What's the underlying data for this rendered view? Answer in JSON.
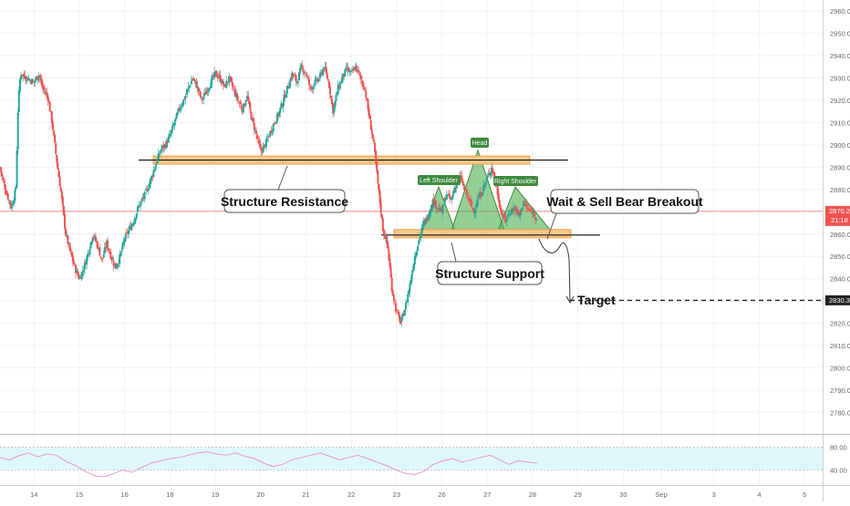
{
  "chart_data": {
    "type": "candlestick",
    "title": "",
    "price_axis": {
      "range": [
        2772,
        2965
      ],
      "ticks": [
        2960,
        2950,
        2940,
        2930,
        2920,
        2910,
        2900,
        2890,
        2880,
        2870,
        2860,
        2850,
        2840,
        2830,
        2820,
        2810,
        2800,
        2790,
        2780
      ],
      "tick_labels": [
        "2960.0",
        "2950.0",
        "2940.0",
        "2930.0",
        "2920.0",
        "2910.0",
        "2900.0",
        "2890.0",
        "2880.0",
        "2870.0",
        "2860.0",
        "2850.0",
        "2840.0",
        "2830.0",
        "2820.0",
        "2810.0",
        "2800.0",
        "2790.0",
        "2780.0"
      ],
      "last_price": 2870.2,
      "last_price_label": "2870.2",
      "countdown_label": "21:18",
      "target_price": 2830.3,
      "target_price_label": "2830.3"
    },
    "time_axis": {
      "labels": [
        "14",
        "15",
        "16",
        "18",
        "19",
        "20",
        "21",
        "22",
        "23",
        "26",
        "27",
        "28",
        "29",
        "30",
        "Sep",
        "3",
        "4",
        "5"
      ],
      "positions": [
        13.5,
        14.5,
        15.5,
        16.5,
        17.5,
        18.5,
        19.5,
        20.5,
        21.5,
        22.5,
        23.5,
        24.5,
        25.5,
        26.5,
        27.34,
        28.5,
        29.5,
        30.5
      ],
      "range": [
        12.75,
        30.9
      ]
    },
    "close_path": [
      [
        12.75,
        2890
      ],
      [
        12.8,
        2885
      ],
      [
        12.9,
        2878
      ],
      [
        13.0,
        2872
      ],
      [
        13.05,
        2876
      ],
      [
        13.1,
        2880
      ],
      [
        13.15,
        2918
      ],
      [
        13.2,
        2932
      ],
      [
        13.35,
        2930
      ],
      [
        13.5,
        2928
      ],
      [
        13.6,
        2932
      ],
      [
        13.7,
        2925
      ],
      [
        13.8,
        2922
      ],
      [
        13.9,
        2910
      ],
      [
        14.0,
        2893
      ],
      [
        14.1,
        2878
      ],
      [
        14.2,
        2860
      ],
      [
        14.3,
        2852
      ],
      [
        14.4,
        2845
      ],
      [
        14.5,
        2840
      ],
      [
        14.6,
        2845
      ],
      [
        14.7,
        2852
      ],
      [
        14.8,
        2860
      ],
      [
        14.9,
        2855
      ],
      [
        15.0,
        2848
      ],
      [
        15.1,
        2856
      ],
      [
        15.2,
        2850
      ],
      [
        15.3,
        2845
      ],
      [
        15.4,
        2850
      ],
      [
        15.5,
        2858
      ],
      [
        15.6,
        2862
      ],
      [
        15.7,
        2866
      ],
      [
        15.8,
        2872
      ],
      [
        15.9,
        2876
      ],
      [
        16.0,
        2880
      ],
      [
        16.1,
        2886
      ],
      [
        16.2,
        2892
      ],
      [
        16.3,
        2898
      ],
      [
        16.4,
        2900
      ],
      [
        16.5,
        2904
      ],
      [
        16.6,
        2910
      ],
      [
        16.7,
        2916
      ],
      [
        16.8,
        2920
      ],
      [
        16.9,
        2925
      ],
      [
        17.0,
        2930
      ],
      [
        17.1,
        2926
      ],
      [
        17.2,
        2920
      ],
      [
        17.3,
        2924
      ],
      [
        17.4,
        2928
      ],
      [
        17.5,
        2932
      ],
      [
        17.6,
        2930
      ],
      [
        17.7,
        2926
      ],
      [
        17.8,
        2930
      ],
      [
        17.9,
        2925
      ],
      [
        18.0,
        2920
      ],
      [
        18.1,
        2916
      ],
      [
        18.2,
        2922
      ],
      [
        18.3,
        2912
      ],
      [
        18.4,
        2905
      ],
      [
        18.5,
        2897
      ],
      [
        18.6,
        2900
      ],
      [
        18.7,
        2905
      ],
      [
        18.8,
        2910
      ],
      [
        18.9,
        2914
      ],
      [
        19.0,
        2920
      ],
      [
        19.1,
        2926
      ],
      [
        19.2,
        2932
      ],
      [
        19.3,
        2928
      ],
      [
        19.4,
        2935
      ],
      [
        19.5,
        2932
      ],
      [
        19.6,
        2925
      ],
      [
        19.7,
        2928
      ],
      [
        19.8,
        2930
      ],
      [
        19.9,
        2935
      ],
      [
        20.0,
        2928
      ],
      [
        20.1,
        2915
      ],
      [
        20.2,
        2925
      ],
      [
        20.3,
        2930
      ],
      [
        20.4,
        2934
      ],
      [
        20.5,
        2932
      ],
      [
        20.6,
        2935
      ],
      [
        20.7,
        2930
      ],
      [
        20.8,
        2925
      ],
      [
        20.9,
        2912
      ],
      [
        21.0,
        2900
      ],
      [
        21.1,
        2880
      ],
      [
        21.2,
        2862
      ],
      [
        21.3,
        2855
      ],
      [
        21.4,
        2835
      ],
      [
        21.5,
        2825
      ],
      [
        21.6,
        2820
      ],
      [
        21.7,
        2828
      ],
      [
        21.8,
        2838
      ],
      [
        21.9,
        2850
      ],
      [
        22.0,
        2858
      ],
      [
        22.1,
        2865
      ],
      [
        22.2,
        2868
      ],
      [
        22.3,
        2875
      ],
      [
        22.4,
        2872
      ],
      [
        22.5,
        2870
      ],
      [
        22.6,
        2878
      ],
      [
        22.7,
        2875
      ],
      [
        22.8,
        2882
      ],
      [
        22.9,
        2886
      ],
      [
        23.0,
        2880
      ],
      [
        23.1,
        2875
      ],
      [
        23.2,
        2870
      ],
      [
        23.3,
        2876
      ],
      [
        23.4,
        2880
      ],
      [
        23.5,
        2885
      ],
      [
        23.6,
        2890
      ],
      [
        23.7,
        2882
      ],
      [
        23.8,
        2870
      ],
      [
        23.9,
        2866
      ],
      [
        24.0,
        2870
      ],
      [
        24.1,
        2872
      ],
      [
        24.2,
        2868
      ],
      [
        24.3,
        2874
      ],
      [
        24.4,
        2871
      ],
      [
        24.5,
        2870
      ],
      [
        24.6,
        2867
      ]
    ],
    "rsi": {
      "range": [
        20,
        100
      ],
      "tick_labels": [
        "80.00",
        "40.00"
      ],
      "upper_band": 80,
      "lower_band": 40,
      "values": [
        62,
        58,
        65,
        70,
        63,
        68,
        66,
        55,
        48,
        38,
        30,
        28,
        33,
        40,
        36,
        44,
        52,
        56,
        60,
        62,
        66,
        70,
        72,
        68,
        66,
        70,
        64,
        60,
        52,
        46,
        50,
        58,
        62,
        66,
        70,
        64,
        58,
        62,
        66,
        60,
        54,
        48,
        40,
        34,
        32,
        38,
        50,
        56,
        60,
        54,
        58,
        62,
        66,
        58,
        50,
        56,
        54,
        52
      ]
    },
    "annotations": {
      "structure_resistance": "Structure Resistance",
      "structure_support": "Structure Support",
      "wait_sell": "Wait & Sell Bear Breakout",
      "target": "Target",
      "head": "Head",
      "left_shoulder": "Left Shoulder",
      "right_shoulder": "Right Shoulder"
    },
    "levels": {
      "resistance": 2893,
      "support": 2860
    },
    "colors": {
      "up": "#26a69a",
      "down": "#ef5350",
      "zone_fill": "#f7c78a",
      "zone_stroke": "#f0a04b",
      "pattern_fill": "#4caf50",
      "rsi_band": "#e0f7fa",
      "rsi_line": "#e89ad1",
      "last_price_bg": "#ef5350"
    }
  }
}
